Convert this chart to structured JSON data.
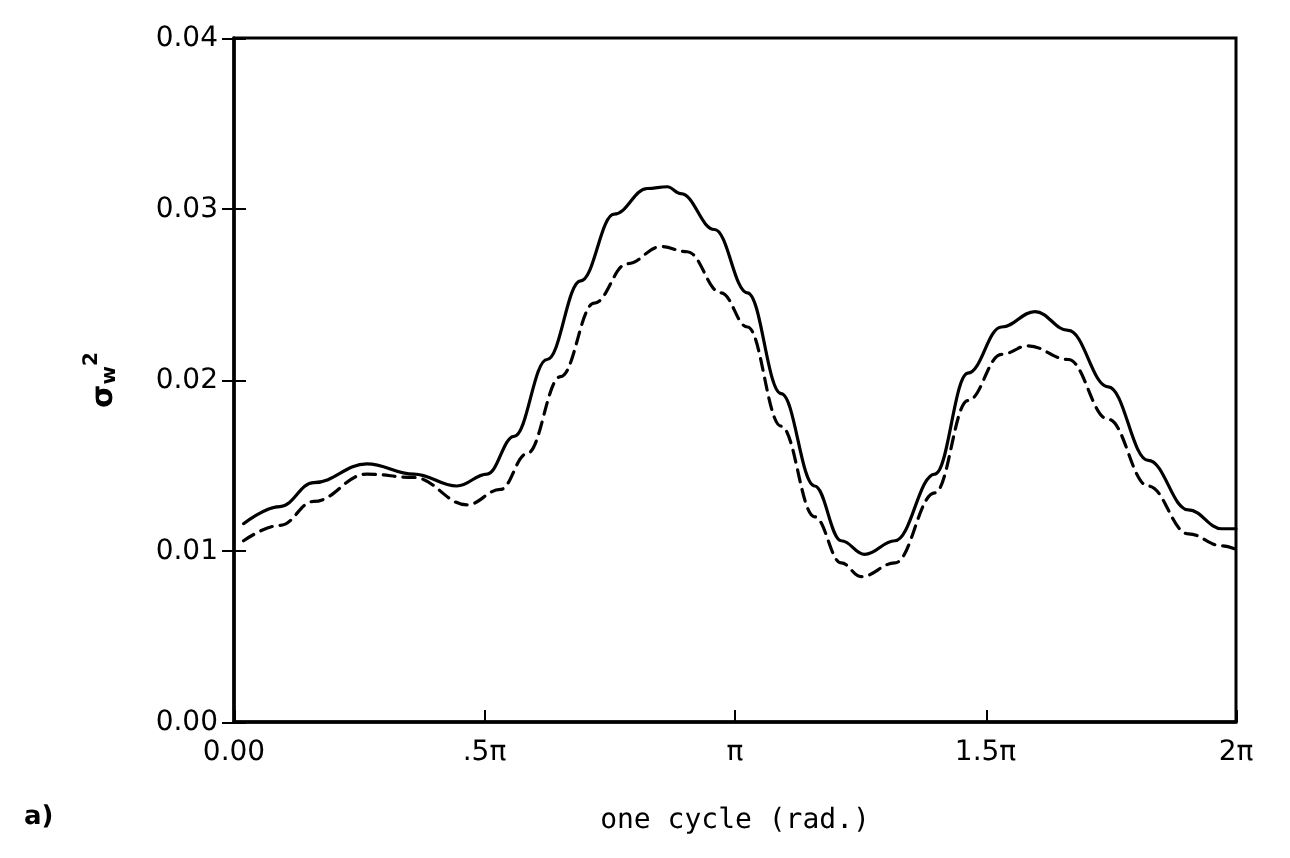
{
  "chart_data": {
    "type": "line",
    "xlabel": "one cycle (rad.)",
    "ylabel": "σ$_{w}$$^{2}$",
    "annotations": [
      "a)"
    ],
    "xlim": [
      0,
      6.2832
    ],
    "xticks": [
      {
        "value": 0,
        "label": "0.00"
      },
      {
        "value": 1.5708,
        "label": ".5π"
      },
      {
        "value": 3.1416,
        "label": "π"
      },
      {
        "value": 4.7124,
        "label": "1.5π"
      },
      {
        "value": 6.2832,
        "label": "2π"
      }
    ],
    "ylim": [
      0,
      0.04
    ],
    "yticks": [
      {
        "value": 0,
        "label": "0.00"
      },
      0.01,
      0.02,
      0.03,
      0.04
    ],
    "grid": false,
    "marker": "none",
    "series": [
      {
        "color": "#000000",
        "line_style": "solid",
        "x": [
          0.06,
          0.289,
          0.5,
          0.833,
          1.128,
          1.398,
          1.587,
          1.756,
          1.963,
          2.174,
          2.384,
          2.592,
          2.717,
          2.802,
          3.013,
          3.22,
          3.431,
          3.641,
          3.808,
          3.955,
          4.144,
          4.395,
          4.602,
          4.813,
          5.023,
          5.231,
          5.482,
          5.733,
          5.985,
          6.195,
          6.283
        ],
        "values": [
          0.0116,
          0.0126,
          0.014,
          0.0151,
          0.0145,
          0.0138,
          0.0145,
          0.0167,
          0.0212,
          0.0258,
          0.0297,
          0.0312,
          0.0313,
          0.0309,
          0.0288,
          0.0251,
          0.0192,
          0.0138,
          0.0106,
          0.0098,
          0.0106,
          0.0145,
          0.0204,
          0.0231,
          0.024,
          0.0229,
          0.0196,
          0.0153,
          0.0124,
          0.0113,
          0.0113
        ]
      },
      {
        "color": "#000000",
        "line_style": "dashed",
        "x": [
          0.06,
          0.289,
          0.5,
          0.833,
          1.128,
          1.461,
          1.671,
          1.838,
          2.048,
          2.259,
          2.466,
          2.677,
          2.843,
          3.054,
          3.22,
          3.431,
          3.641,
          3.808,
          3.933,
          4.144,
          4.395,
          4.602,
          4.813,
          4.979,
          5.231,
          5.482,
          5.733,
          5.985,
          6.195,
          6.283
        ],
        "values": [
          0.0106,
          0.0115,
          0.0129,
          0.0145,
          0.0143,
          0.0127,
          0.0136,
          0.0157,
          0.0202,
          0.0245,
          0.0268,
          0.0278,
          0.0275,
          0.0251,
          0.0231,
          0.0173,
          0.012,
          0.0093,
          0.0085,
          0.0093,
          0.0134,
          0.0188,
          0.0215,
          0.022,
          0.0212,
          0.0177,
          0.0138,
          0.011,
          0.0103,
          0.0101
        ]
      }
    ]
  }
}
